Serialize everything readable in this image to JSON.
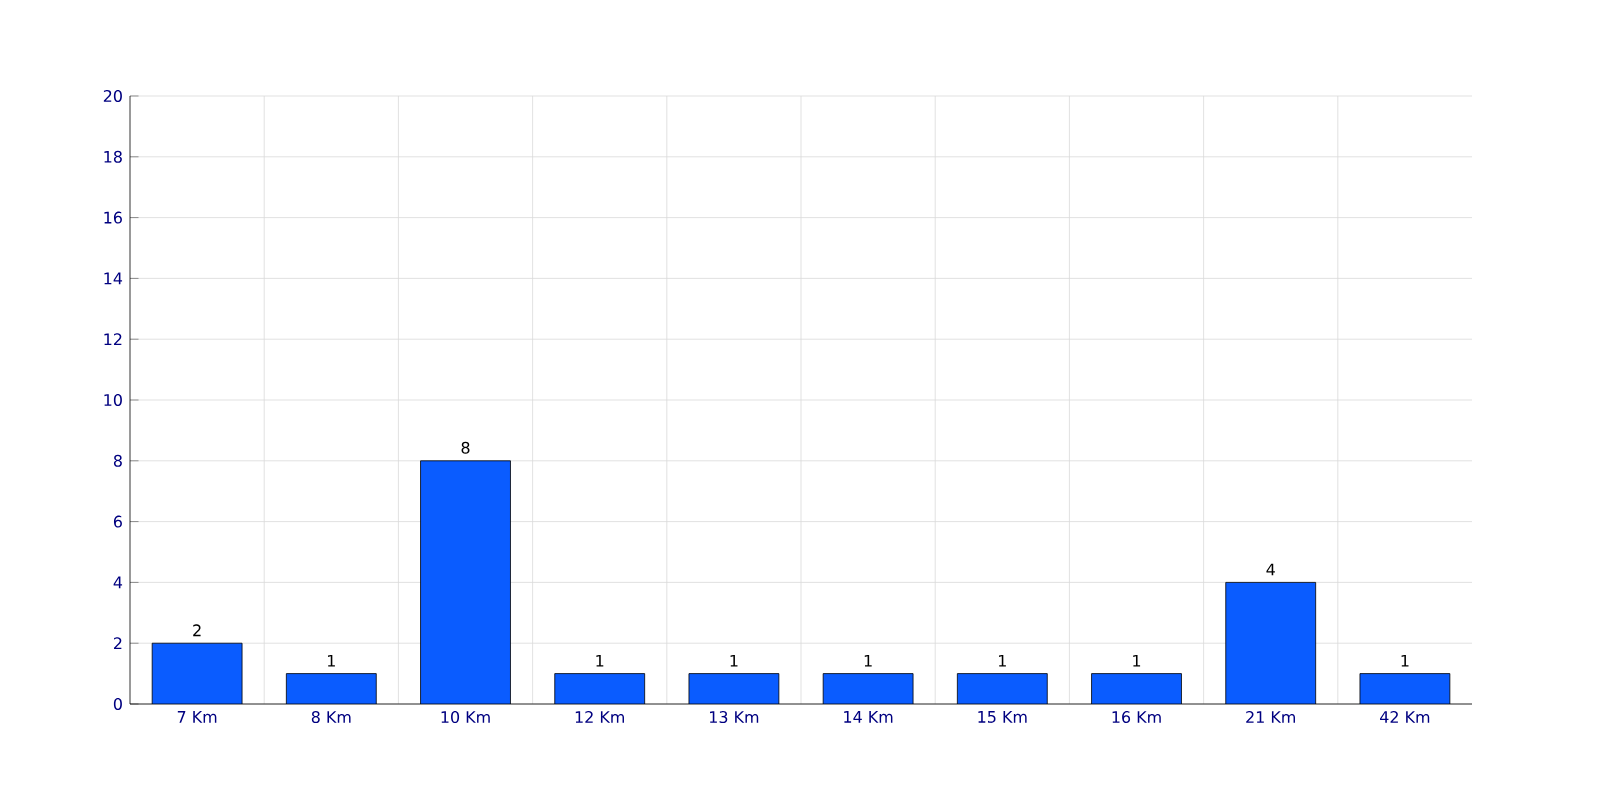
{
  "chart_data": {
    "type": "bar",
    "categories": [
      "7 Km",
      "8 Km",
      "10 Km",
      "12 Km",
      "13 Km",
      "14 Km",
      "15 Km",
      "16 Km",
      "21 Km",
      "42 Km"
    ],
    "values": [
      2,
      1,
      8,
      1,
      1,
      1,
      1,
      1,
      4,
      1
    ],
    "color": "#0a5cff",
    "ylim": [
      0,
      20
    ],
    "yticks": [
      0,
      2,
      4,
      6,
      8,
      10,
      12,
      14,
      16,
      18,
      20
    ],
    "grid": true,
    "data_labels": true
  }
}
